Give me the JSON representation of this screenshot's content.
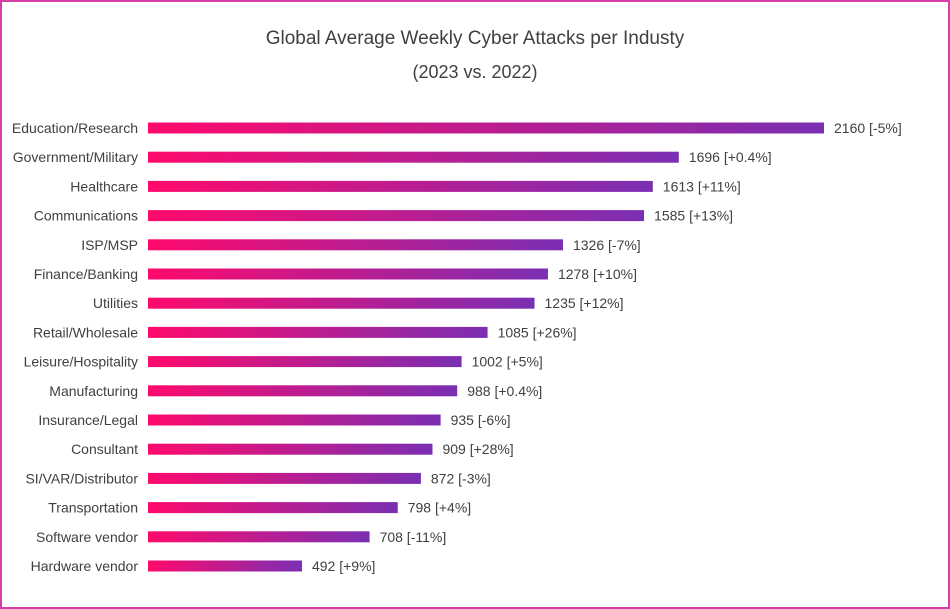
{
  "chart_data": {
    "type": "bar",
    "orientation": "horizontal",
    "title": "Global Average Weekly Cyber Attacks per Industy",
    "subtitle": "(2023 vs. 2022)",
    "xlabel": "",
    "ylabel": "",
    "grid": false,
    "categories": [
      "Education/Research",
      "Government/Military",
      "Healthcare",
      "Communications",
      "ISP/MSP",
      "Finance/Banking",
      "Utilities",
      "Retail/Wholesale",
      "Leisure/Hospitality",
      "Manufacturing",
      "Insurance/Legal",
      "Consultant",
      "SI/VAR/Distributor",
      "Transportation",
      "Software vendor",
      "Hardware vendor"
    ],
    "values": [
      2160,
      1696,
      1613,
      1585,
      1326,
      1278,
      1235,
      1085,
      1002,
      988,
      935,
      909,
      872,
      798,
      708,
      492
    ],
    "value_labels": [
      "2160 [-5%]",
      "1696 [+0.4%]",
      "1613 [+11%]",
      "1585 [+13%]",
      "1326 [-7%]",
      "1278 [+10%]",
      "1235 [+12%]",
      "1085 [+26%]",
      "1002 [+5%]",
      "988 [+0.4%]",
      "935 [-6%]",
      "909 [+28%]",
      "872 [-3%]",
      "798 [+4%]",
      "708 [-11%]",
      "492 [+9%]"
    ],
    "xlim": [
      0,
      2160
    ],
    "bar_gradient": [
      "#ff0a6c",
      "#7a2fb3"
    ],
    "border_color": "#d63fa7"
  }
}
